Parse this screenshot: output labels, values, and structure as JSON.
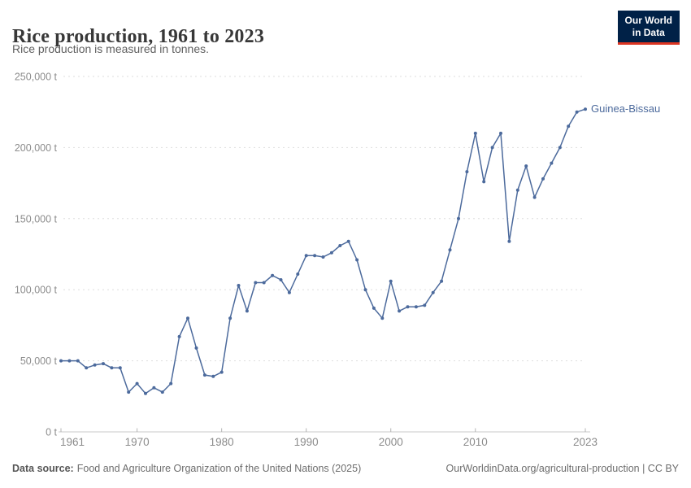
{
  "header": {
    "title": "Rice production, 1961 to 2023",
    "subtitle": "Rice production is measured in tonnes."
  },
  "logo": {
    "line1": "Our World",
    "line2": "in Data"
  },
  "chart_data": {
    "type": "line",
    "title": "Rice production, 1961 to 2023",
    "unit": "tonnes",
    "entity": "Guinea-Bissau",
    "grid": "horizontal-dashed",
    "legend_position": "end-of-line-label",
    "ylim": [
      0,
      250000
    ],
    "x_ticks": [
      1961,
      1970,
      1980,
      1990,
      2000,
      2010,
      2023
    ],
    "y_ticks": [
      {
        "value": 0,
        "label": "0 t"
      },
      {
        "value": 50000,
        "label": "50,000 t"
      },
      {
        "value": 100000,
        "label": "100,000 t"
      },
      {
        "value": 150000,
        "label": "150,000 t"
      },
      {
        "value": 200000,
        "label": "200,000 t"
      },
      {
        "value": 250000,
        "label": "250,000 t"
      }
    ],
    "x": [
      1961,
      1962,
      1963,
      1964,
      1965,
      1966,
      1967,
      1968,
      1969,
      1970,
      1971,
      1972,
      1973,
      1974,
      1975,
      1976,
      1977,
      1978,
      1979,
      1980,
      1981,
      1982,
      1983,
      1984,
      1985,
      1986,
      1987,
      1988,
      1989,
      1990,
      1991,
      1992,
      1993,
      1994,
      1995,
      1996,
      1997,
      1998,
      1999,
      2000,
      2001,
      2002,
      2003,
      2004,
      2005,
      2006,
      2007,
      2008,
      2009,
      2010,
      2011,
      2012,
      2013,
      2014,
      2015,
      2016,
      2017,
      2018,
      2019,
      2020,
      2021,
      2022,
      2023
    ],
    "series": [
      {
        "name": "Guinea-Bissau",
        "color": "#4c6a9c",
        "values": [
          50000,
          50000,
          50000,
          45000,
          47000,
          48000,
          45000,
          45000,
          28000,
          34000,
          27000,
          31000,
          28000,
          34000,
          67000,
          80000,
          59000,
          40000,
          39000,
          42000,
          80000,
          103000,
          85000,
          105000,
          105000,
          110000,
          107000,
          98000,
          111000,
          124000,
          124000,
          123000,
          126000,
          131000,
          134000,
          121000,
          100000,
          87000,
          80000,
          106000,
          85000,
          88000,
          88000,
          89000,
          98000,
          106000,
          128000,
          150000,
          183000,
          210000,
          176000,
          200000,
          210000,
          134000,
          170000,
          187000,
          165000,
          178000,
          189000,
          200000,
          215000,
          225000,
          227000
        ]
      }
    ]
  },
  "footer": {
    "datasource_label": "Data source:",
    "datasource_value": "Food and Agriculture Organization of the United Nations (2025)",
    "credit": "OurWorldinData.org/agricultural-production | CC BY"
  },
  "colors": {
    "line": "#4c6a9c",
    "grid": "#dedede",
    "axis": "#c9c9c9",
    "axis_tick": "#b4b4b4",
    "tick_label": "#8c8c8c",
    "title": "#383838",
    "subtitle": "#5f5f5f",
    "logo_background": "#002147",
    "logo_accent": "#dc3522",
    "footer_text": "#6d6d6d"
  }
}
